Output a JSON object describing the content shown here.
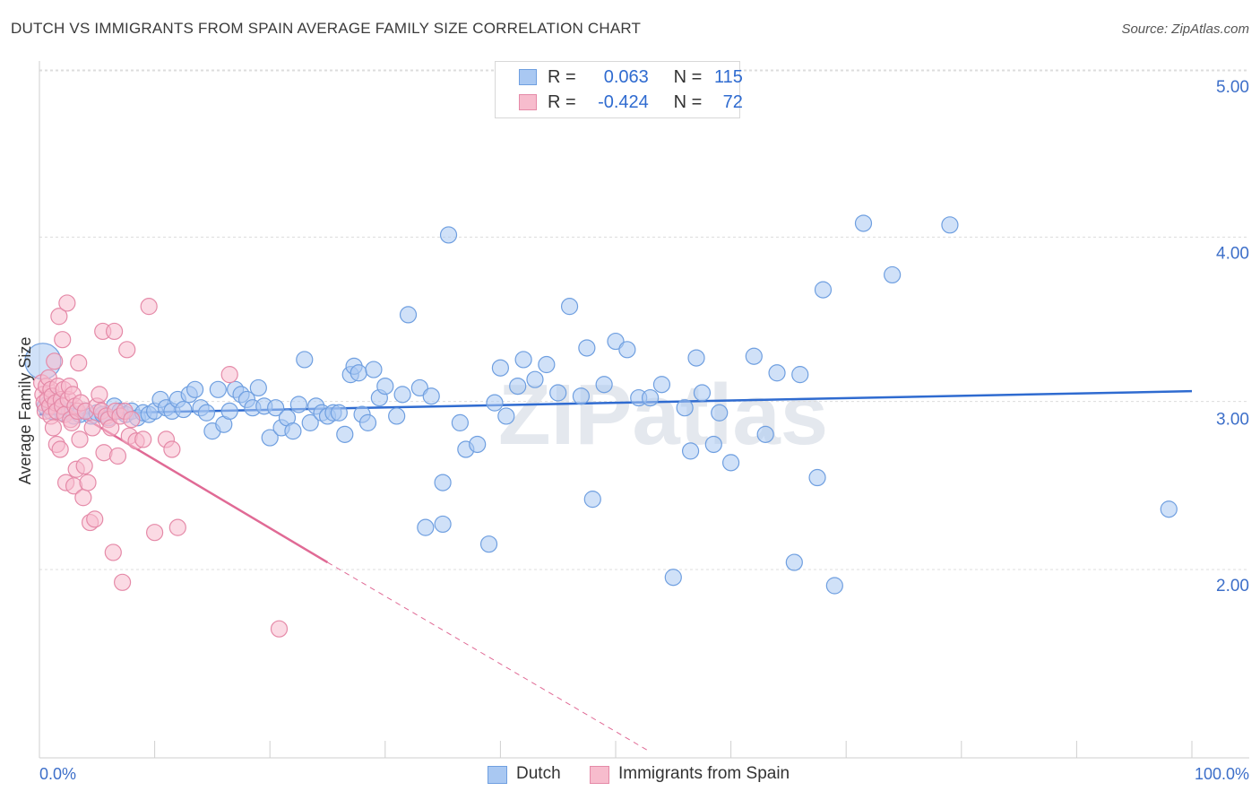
{
  "title": "DUTCH VS IMMIGRANTS FROM SPAIN AVERAGE FAMILY SIZE CORRELATION CHART",
  "source": "Source: ZipAtlas.com",
  "watermark": "ZIPatlas",
  "legend": {
    "rows": [
      {
        "r_label": "R =",
        "r_value": "0.063",
        "n_label": "N =",
        "n_value": "115",
        "color": "#a9c8f2",
        "border": "#6f9fe0"
      },
      {
        "r_label": "R =",
        "r_value": "-0.424",
        "n_label": "N =",
        "n_value": "72",
        "color": "#f7bccd",
        "border": "#e58aa8"
      }
    ]
  },
  "bottom_legend": {
    "dutch": "Dutch",
    "spain": "Immigrants from Spain"
  },
  "chart_data": {
    "type": "scatter",
    "title": "DUTCH VS IMMIGRANTS FROM SPAIN AVERAGE FAMILY SIZE CORRELATION CHART",
    "xlabel": "",
    "ylabel": "Average Family Size",
    "x_tick_labels": [
      "0.0%",
      "100.0%"
    ],
    "y_tick_labels": [
      "2.00",
      "3.00",
      "4.00",
      "5.00"
    ],
    "xlim": [
      0,
      100
    ],
    "ylim": [
      1.0,
      5.1
    ],
    "y_ticks": [
      2.0,
      3.0,
      4.0,
      5.0
    ],
    "grid": true,
    "legend_position": "top-center",
    "colors": {
      "dutch": "#6f9fe0",
      "dutch_fill": "#a9c8f2",
      "spain": "#e58aa8",
      "spain_fill": "#f7bccd",
      "dutch_line": "#2f6bd0",
      "spain_line": "#e06a95"
    },
    "series": [
      {
        "name": "Dutch",
        "trend": {
          "x": [
            0,
            100
          ],
          "y": [
            3.03,
            3.17
          ]
        },
        "points": [
          [
            0.3,
            3.35
          ],
          [
            0.5,
            3.08
          ],
          [
            0.8,
            3.1
          ],
          [
            1.0,
            3.05
          ],
          [
            1.3,
            3.12
          ],
          [
            1.6,
            3.08
          ],
          [
            2.0,
            3.04
          ],
          [
            2.6,
            3.05
          ],
          [
            3.0,
            3.02
          ],
          [
            3.5,
            3.03
          ],
          [
            4.0,
            3.05
          ],
          [
            4.5,
            3.02
          ],
          [
            5.0,
            3.04
          ],
          [
            5.5,
            3.03
          ],
          [
            6.0,
            3.01
          ],
          [
            6.5,
            3.08
          ],
          [
            7.0,
            3.05
          ],
          [
            7.5,
            3.03
          ],
          [
            8.0,
            3.05
          ],
          [
            8.5,
            3.01
          ],
          [
            9.0,
            3.04
          ],
          [
            9.5,
            3.03
          ],
          [
            10.0,
            3.05
          ],
          [
            10.5,
            3.12
          ],
          [
            11.0,
            3.07
          ],
          [
            11.5,
            3.05
          ],
          [
            12.0,
            3.12
          ],
          [
            12.5,
            3.06
          ],
          [
            13.0,
            3.15
          ],
          [
            13.5,
            3.18
          ],
          [
            14.0,
            3.07
          ],
          [
            14.5,
            3.04
          ],
          [
            15.0,
            2.93
          ],
          [
            15.5,
            3.18
          ],
          [
            16.0,
            2.97
          ],
          [
            16.5,
            3.05
          ],
          [
            17.0,
            3.18
          ],
          [
            17.5,
            3.15
          ],
          [
            18.0,
            3.12
          ],
          [
            18.5,
            3.07
          ],
          [
            19.0,
            3.19
          ],
          [
            19.5,
            3.08
          ],
          [
            20.0,
            2.89
          ],
          [
            20.5,
            3.07
          ],
          [
            21.0,
            2.95
          ],
          [
            21.5,
            3.01
          ],
          [
            22.0,
            2.93
          ],
          [
            22.5,
            3.09
          ],
          [
            23.0,
            3.36
          ],
          [
            23.5,
            2.98
          ],
          [
            24.0,
            3.08
          ],
          [
            24.5,
            3.04
          ],
          [
            25.0,
            3.02
          ],
          [
            25.5,
            3.04
          ],
          [
            26.0,
            3.04
          ],
          [
            26.5,
            2.91
          ],
          [
            27.0,
            3.27
          ],
          [
            27.3,
            3.32
          ],
          [
            27.7,
            3.28
          ],
          [
            28.0,
            3.03
          ],
          [
            28.5,
            2.98
          ],
          [
            29.0,
            3.3
          ],
          [
            29.5,
            3.13
          ],
          [
            30.0,
            3.2
          ],
          [
            31.0,
            3.02
          ],
          [
            31.5,
            3.15
          ],
          [
            32.0,
            3.63
          ],
          [
            33.0,
            3.19
          ],
          [
            34.0,
            3.14
          ],
          [
            35.0,
            2.62
          ],
          [
            35.5,
            4.11
          ],
          [
            36.5,
            2.98
          ],
          [
            37.0,
            2.82
          ],
          [
            38.0,
            2.85
          ],
          [
            39.0,
            2.25
          ],
          [
            39.5,
            3.1
          ],
          [
            40.0,
            3.31
          ],
          [
            40.5,
            3.02
          ],
          [
            41.5,
            3.2
          ],
          [
            42.0,
            3.36
          ],
          [
            43.0,
            3.24
          ],
          [
            44.0,
            3.33
          ],
          [
            45.0,
            3.16
          ],
          [
            46.0,
            3.68
          ],
          [
            47.0,
            3.14
          ],
          [
            47.5,
            3.43
          ],
          [
            48.0,
            2.52
          ],
          [
            49.0,
            3.21
          ],
          [
            50.0,
            3.47
          ],
          [
            51.0,
            3.42
          ],
          [
            52.0,
            3.13
          ],
          [
            53.0,
            3.13
          ],
          [
            54.0,
            3.21
          ],
          [
            55.0,
            2.05
          ],
          [
            56.0,
            3.07
          ],
          [
            56.5,
            2.81
          ],
          [
            57.0,
            3.37
          ],
          [
            57.5,
            3.16
          ],
          [
            58.5,
            2.85
          ],
          [
            59.0,
            3.04
          ],
          [
            60.0,
            2.74
          ],
          [
            62.0,
            3.38
          ],
          [
            63.0,
            2.91
          ],
          [
            64.0,
            3.28
          ],
          [
            65.5,
            2.14
          ],
          [
            66.0,
            3.27
          ],
          [
            67.5,
            2.65
          ],
          [
            68.0,
            3.78
          ],
          [
            69.0,
            2.0
          ],
          [
            71.5,
            4.18
          ],
          [
            74.0,
            3.87
          ],
          [
            79.0,
            4.17
          ],
          [
            98.0,
            2.46
          ],
          [
            35.0,
            2.37
          ],
          [
            33.5,
            2.35
          ]
        ]
      },
      {
        "name": "Immigrants from Spain",
        "trend": {
          "x": [
            0,
            25
          ],
          "y": [
            3.17,
            2.14
          ]
        },
        "trend_dashed": {
          "x": [
            25,
            53
          ],
          "y": [
            2.14,
            1.0
          ]
        },
        "points": [
          [
            0.2,
            3.22
          ],
          [
            0.3,
            3.15
          ],
          [
            0.4,
            3.1
          ],
          [
            0.5,
            3.05
          ],
          [
            0.6,
            3.2
          ],
          [
            0.7,
            3.12
          ],
          [
            0.8,
            3.25
          ],
          [
            0.9,
            3.08
          ],
          [
            1.0,
            3.18
          ],
          [
            1.0,
            3.02
          ],
          [
            1.1,
            3.14
          ],
          [
            1.2,
            2.95
          ],
          [
            1.3,
            3.35
          ],
          [
            1.4,
            3.1
          ],
          [
            1.5,
            3.05
          ],
          [
            1.5,
            2.85
          ],
          [
            1.6,
            3.2
          ],
          [
            1.7,
            3.62
          ],
          [
            1.8,
            2.82
          ],
          [
            1.9,
            3.12
          ],
          [
            2.0,
            3.48
          ],
          [
            2.0,
            3.08
          ],
          [
            2.1,
            3.18
          ],
          [
            2.2,
            3.03
          ],
          [
            2.3,
            2.62
          ],
          [
            2.4,
            3.7
          ],
          [
            2.5,
            3.12
          ],
          [
            2.6,
            3.2
          ],
          [
            2.7,
            3.0
          ],
          [
            2.8,
            2.98
          ],
          [
            2.9,
            3.15
          ],
          [
            3.0,
            2.6
          ],
          [
            3.1,
            3.08
          ],
          [
            3.2,
            2.7
          ],
          [
            3.3,
            3.05
          ],
          [
            3.4,
            3.34
          ],
          [
            3.5,
            2.88
          ],
          [
            3.6,
            3.1
          ],
          [
            3.8,
            2.53
          ],
          [
            3.9,
            2.72
          ],
          [
            4.0,
            3.05
          ],
          [
            4.2,
            2.62
          ],
          [
            4.4,
            2.38
          ],
          [
            4.6,
            2.95
          ],
          [
            4.8,
            2.4
          ],
          [
            5.0,
            3.08
          ],
          [
            5.2,
            3.15
          ],
          [
            5.4,
            3.05
          ],
          [
            5.6,
            2.8
          ],
          [
            5.8,
            3.02
          ],
          [
            6.0,
            3.0
          ],
          [
            6.2,
            2.95
          ],
          [
            6.4,
            2.2
          ],
          [
            6.6,
            3.05
          ],
          [
            6.8,
            2.78
          ],
          [
            7.0,
            3.02
          ],
          [
            7.2,
            2.02
          ],
          [
            7.4,
            3.05
          ],
          [
            7.6,
            3.42
          ],
          [
            7.8,
            2.9
          ],
          [
            8.0,
            3.0
          ],
          [
            8.4,
            2.87
          ],
          [
            9.0,
            2.88
          ],
          [
            9.5,
            3.68
          ],
          [
            10.0,
            2.32
          ],
          [
            11.0,
            2.88
          ],
          [
            11.5,
            2.82
          ],
          [
            12.0,
            2.35
          ],
          [
            16.5,
            3.27
          ],
          [
            20.8,
            1.74
          ],
          [
            5.5,
            3.53
          ],
          [
            6.5,
            3.53
          ]
        ]
      }
    ]
  }
}
